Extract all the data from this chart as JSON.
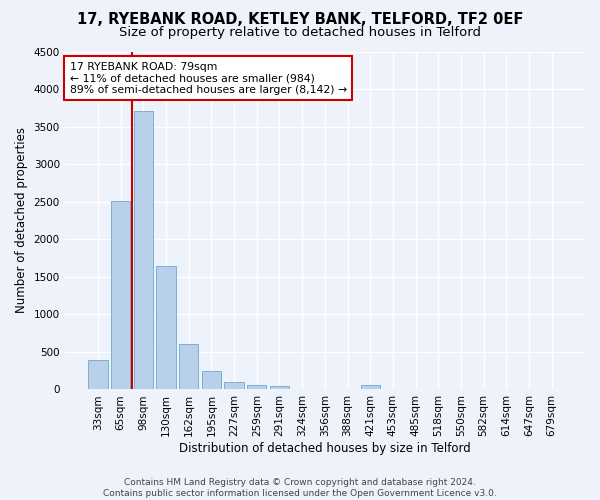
{
  "title1": "17, RYEBANK ROAD, KETLEY BANK, TELFORD, TF2 0EF",
  "title2": "Size of property relative to detached houses in Telford",
  "xlabel": "Distribution of detached houses by size in Telford",
  "ylabel": "Number of detached properties",
  "categories": [
    "33sqm",
    "65sqm",
    "98sqm",
    "130sqm",
    "162sqm",
    "195sqm",
    "227sqm",
    "259sqm",
    "291sqm",
    "324sqm",
    "356sqm",
    "388sqm",
    "421sqm",
    "453sqm",
    "485sqm",
    "518sqm",
    "550sqm",
    "582sqm",
    "614sqm",
    "647sqm",
    "679sqm"
  ],
  "values": [
    390,
    2510,
    3710,
    1640,
    600,
    245,
    100,
    65,
    50,
    0,
    0,
    0,
    55,
    0,
    0,
    0,
    0,
    0,
    0,
    0,
    0
  ],
  "bar_color": "#b8d0ea",
  "bar_edge_color": "#7aafd4",
  "vline_color": "#cc0000",
  "annotation_text": "17 RYEBANK ROAD: 79sqm\n← 11% of detached houses are smaller (984)\n89% of semi-detached houses are larger (8,142) →",
  "annotation_box_color": "#ffffff",
  "annotation_box_edge": "#cc0000",
  "ylim": [
    0,
    4500
  ],
  "yticks": [
    0,
    500,
    1000,
    1500,
    2000,
    2500,
    3000,
    3500,
    4000,
    4500
  ],
  "footer": "Contains HM Land Registry data © Crown copyright and database right 2024.\nContains public sector information licensed under the Open Government Licence v3.0.",
  "bg_color": "#eef2fa",
  "grid_color": "#ffffff",
  "title_fontsize": 10.5,
  "subtitle_fontsize": 9.5,
  "axis_label_fontsize": 8.5,
  "tick_fontsize": 7.5,
  "footer_fontsize": 6.5
}
